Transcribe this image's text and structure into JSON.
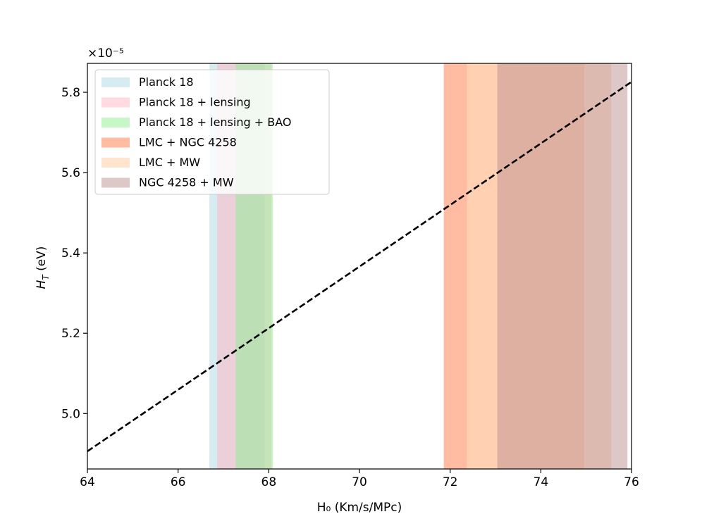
{
  "chart_data": {
    "type": "line",
    "title": "",
    "xlabel": "H₀ (Km/s/MPc)",
    "ylabel": "H_T (eV)",
    "y_scale_factor": "×10⁻⁵",
    "xlim": [
      64,
      76
    ],
    "ylim": [
      4.862,
      5.872
    ],
    "x_ticks": [
      64,
      66,
      68,
      70,
      72,
      74,
      76
    ],
    "y_ticks": [
      5.0,
      5.2,
      5.4,
      5.6,
      5.8
    ],
    "x_tick_labels": [
      "64",
      "66",
      "68",
      "70",
      "72",
      "74",
      "76"
    ],
    "y_tick_labels": [
      "5.0",
      "5.2",
      "5.4",
      "5.6",
      "5.8"
    ],
    "grid": false,
    "legend_position": "top-left",
    "line": {
      "style": "dashed",
      "color": "#000000",
      "x": [
        64,
        76
      ],
      "y": [
        4.906,
        5.826
      ]
    },
    "bands": [
      {
        "name": "Planck 18",
        "x_range": [
          66.69,
          67.91
        ],
        "color": "#add8e6",
        "alpha": 0.5
      },
      {
        "name": "Planck 18 + lensing",
        "x_range": [
          66.86,
          68.06
        ],
        "color": "#ffb6c1",
        "alpha": 0.5
      },
      {
        "name": "Planck 18 + lensing + BAO",
        "x_range": [
          67.27,
          68.09
        ],
        "color": "#90ee90",
        "alpha": 0.5
      },
      {
        "name": "LMC + NGC 4258",
        "x_range": [
          71.86,
          74.96
        ],
        "color": "#ffa07a",
        "alpha": 0.7
      },
      {
        "name": "LMC + MW",
        "x_range": [
          72.37,
          75.55
        ],
        "color": "#ffdab9",
        "alpha": 0.7
      },
      {
        "name": "NGC 4258 + MW",
        "x_range": [
          73.04,
          75.91
        ],
        "color": "#bc8f8f",
        "alpha": 0.5
      }
    ]
  }
}
